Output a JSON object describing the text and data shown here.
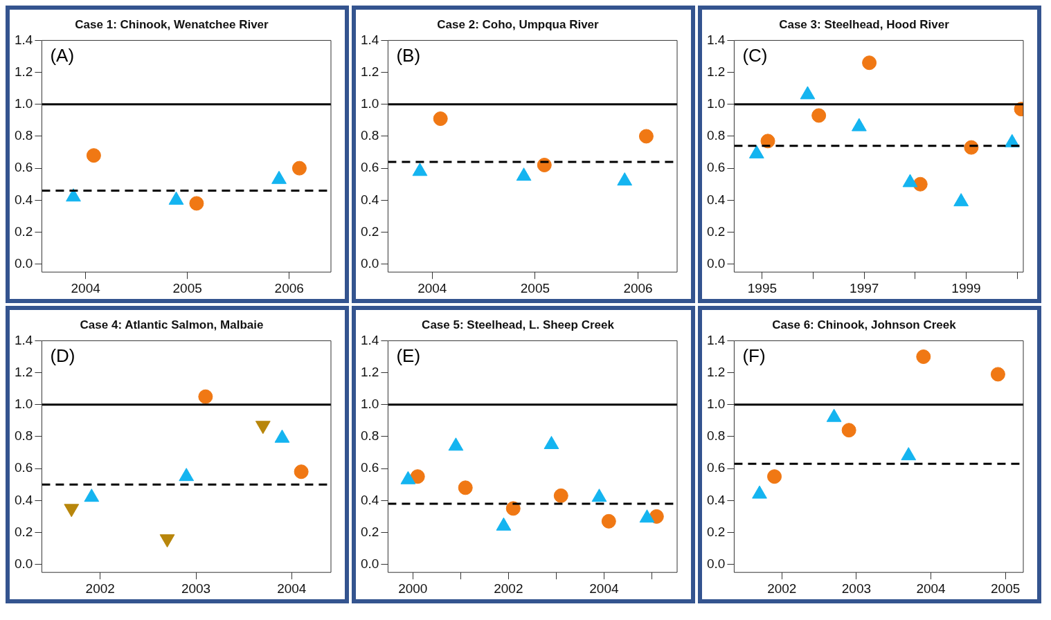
{
  "chart_data": [
    {
      "type": "scatter",
      "title": "Case 1: Chinook, Wenatchee River",
      "annotations": [
        "(A)"
      ],
      "xlim": [
        2003.57,
        2006.41
      ],
      "xticks": [
        2004,
        2005,
        2006
      ],
      "ylim": [
        -0.05,
        1.4
      ],
      "yticks": [
        {
          "value": 0,
          "label": "0.0"
        },
        {
          "value": 0.2,
          "label": "0.2"
        },
        {
          "value": 0.4,
          "label": "0.4"
        },
        {
          "value": 0.6,
          "label": "0.6"
        },
        {
          "value": 0.8,
          "label": "0.8"
        },
        {
          "value": 1,
          "label": "1.0"
        },
        {
          "value": 1.2,
          "label": "1.2"
        },
        {
          "value": 1.4,
          "label": "1.4"
        }
      ],
      "grid": false,
      "series": [
        {
          "color": "#14b4f0",
          "marker": "triangle",
          "x": [
            2003.88,
            2004.89,
            2005.9
          ],
          "values": [
            0.42,
            0.4,
            0.53
          ]
        },
        {
          "color": "#f07814",
          "marker": "circle",
          "x": [
            2004.08,
            2005.09,
            2006.1
          ],
          "values": [
            0.68,
            0.38,
            0.6
          ]
        }
      ],
      "ref_lines": [
        {
          "axis": "y",
          "value": 1,
          "color": "#000000",
          "line_style": "solid"
        },
        {
          "axis": "y",
          "value": 0.46,
          "color": "#000000",
          "line_style": "dashed"
        }
      ]
    },
    {
      "type": "scatter",
      "title": "Case 2: Coho, Umpqua River",
      "annotations": [
        "(B)"
      ],
      "xlim": [
        2003.57,
        2006.38
      ],
      "xticks": [
        2004,
        2005,
        2006
      ],
      "ylim": [
        -0.05,
        1.4
      ],
      "yticks": [
        {
          "value": 0,
          "label": "0.0"
        },
        {
          "value": 0.2,
          "label": "0.2"
        },
        {
          "value": 0.4,
          "label": "0.4"
        },
        {
          "value": 0.6,
          "label": "0.6"
        },
        {
          "value": 0.8,
          "label": "0.8"
        },
        {
          "value": 1,
          "label": "1.0"
        },
        {
          "value": 1.2,
          "label": "1.2"
        },
        {
          "value": 1.4,
          "label": "1.4"
        }
      ],
      "grid": false,
      "series": [
        {
          "color": "#14b4f0",
          "marker": "triangle",
          "x": [
            2003.88,
            2004.89,
            2005.87
          ],
          "values": [
            0.58,
            0.55,
            0.52
          ]
        },
        {
          "color": "#f07814",
          "marker": "circle",
          "x": [
            2004.08,
            2005.09,
            2006.08
          ],
          "values": [
            0.91,
            0.62,
            0.8
          ]
        }
      ],
      "ref_lines": [
        {
          "axis": "y",
          "value": 1,
          "color": "#000000",
          "line_style": "solid"
        },
        {
          "axis": "y",
          "value": 0.64,
          "color": "#000000",
          "line_style": "dashed"
        }
      ]
    },
    {
      "type": "scatter",
      "title": "Case 3: Steelhead, Hood River",
      "annotations": [
        "(C)"
      ],
      "xlim": [
        1994.45,
        2000.12
      ],
      "xticks": [
        1995,
        {
          "value": 1996,
          "label": null
        },
        1997,
        {
          "value": 1998,
          "label": null
        },
        1999,
        {
          "value": 2000,
          "label": null
        }
      ],
      "ylim": [
        -0.05,
        1.4
      ],
      "yticks": [
        {
          "value": 0,
          "label": "0.0"
        },
        {
          "value": 0.2,
          "label": "0.2"
        },
        {
          "value": 0.4,
          "label": "0.4"
        },
        {
          "value": 0.6,
          "label": "0.6"
        },
        {
          "value": 0.8,
          "label": "0.8"
        },
        {
          "value": 1,
          "label": "1.0"
        },
        {
          "value": 1.2,
          "label": "1.2"
        },
        {
          "value": 1.4,
          "label": "1.4"
        }
      ],
      "grid": false,
      "series": [
        {
          "color": "#14b4f0",
          "marker": "triangle",
          "x": [
            1994.89,
            1995.89,
            1996.9,
            1997.9,
            1998.9,
            1999.9
          ],
          "values": [
            0.69,
            1.06,
            0.86,
            0.51,
            0.39,
            0.76
          ]
        },
        {
          "color": "#f07814",
          "marker": "circle",
          "x": [
            1995.11,
            1996.11,
            1997.1,
            1998.1,
            1999.1,
            2000.08
          ],
          "values": [
            0.77,
            0.93,
            1.26,
            0.5,
            0.73,
            0.97
          ]
        }
      ],
      "ref_lines": [
        {
          "axis": "y",
          "value": 1,
          "color": "#000000",
          "line_style": "solid"
        },
        {
          "axis": "y",
          "value": 0.74,
          "color": "#000000",
          "line_style": "dashed"
        }
      ]
    },
    {
      "type": "scatter",
      "title": "Case 4: Atlantic Salmon, Malbaie",
      "annotations": [
        "(D)"
      ],
      "xlim": [
        2001.39,
        2004.41
      ],
      "xticks": [
        2002,
        2003,
        2004
      ],
      "ylim": [
        -0.05,
        1.4
      ],
      "yticks": [
        {
          "value": 0,
          "label": "0.0"
        },
        {
          "value": 0.2,
          "label": "0.2"
        },
        {
          "value": 0.4,
          "label": "0.4"
        },
        {
          "value": 0.6,
          "label": "0.6"
        },
        {
          "value": 0.8,
          "label": "0.8"
        },
        {
          "value": 1,
          "label": "1.0"
        },
        {
          "value": 1.2,
          "label": "1.2"
        },
        {
          "value": 1.4,
          "label": "1.4"
        }
      ],
      "grid": false,
      "series": [
        {
          "color": "#14b4f0",
          "marker": "triangle",
          "x": [
            2001.91,
            2002.9,
            2003.9
          ],
          "values": [
            0.42,
            0.55,
            0.79
          ]
        },
        {
          "color": "#f07814",
          "marker": "circle",
          "x": [
            2003.1,
            2004.1
          ],
          "values": [
            1.05,
            0.58
          ]
        },
        {
          "color": "#b8860b",
          "marker": "triangle-down",
          "x": [
            2001.7,
            2002.7,
            2003.7
          ],
          "values": [
            0.35,
            0.16,
            0.87
          ]
        }
      ],
      "ref_lines": [
        {
          "axis": "y",
          "value": 1,
          "color": "#000000",
          "line_style": "solid"
        },
        {
          "axis": "y",
          "value": 0.5,
          "color": "#000000",
          "line_style": "dashed"
        }
      ]
    },
    {
      "type": "scatter",
      "title": "Case 5: Steelhead, L. Sheep Creek",
      "annotations": [
        "(E)"
      ],
      "xlim": [
        1999.48,
        2005.53
      ],
      "xticks": [
        2000,
        {
          "value": 2001,
          "label": null
        },
        2002,
        {
          "value": 2003,
          "label": null
        },
        2004,
        {
          "value": 2005,
          "label": null
        }
      ],
      "ylim": [
        -0.05,
        1.4
      ],
      "yticks": [
        {
          "value": 0,
          "label": "0.0"
        },
        {
          "value": 0.2,
          "label": "0.2"
        },
        {
          "value": 0.4,
          "label": "0.4"
        },
        {
          "value": 0.6,
          "label": "0.6"
        },
        {
          "value": 0.8,
          "label": "0.8"
        },
        {
          "value": 1,
          "label": "1.0"
        },
        {
          "value": 1.2,
          "label": "1.2"
        },
        {
          "value": 1.4,
          "label": "1.4"
        }
      ],
      "grid": false,
      "series": [
        {
          "color": "#14b4f0",
          "marker": "triangle",
          "x": [
            1999.9,
            2000.9,
            2001.9,
            2002.9,
            2003.9,
            2004.9
          ],
          "values": [
            0.53,
            0.74,
            0.24,
            0.75,
            0.42,
            0.29
          ]
        },
        {
          "color": "#f07814",
          "marker": "circle",
          "x": [
            2000.1,
            2001.1,
            2002.1,
            2003.1,
            2004.1,
            2005.1
          ],
          "values": [
            0.55,
            0.48,
            0.35,
            0.43,
            0.27,
            0.3
          ]
        }
      ],
      "ref_lines": [
        {
          "axis": "y",
          "value": 1,
          "color": "#000000",
          "line_style": "solid"
        },
        {
          "axis": "y",
          "value": 0.38,
          "color": "#000000",
          "line_style": "dashed"
        }
      ]
    },
    {
      "type": "scatter",
      "title": "Case 6: Chinook, Johnson Creek",
      "annotations": [
        "(F)"
      ],
      "xlim": [
        2001.36,
        2005.24
      ],
      "xticks": [
        2002,
        2003,
        2004,
        2005
      ],
      "ylim": [
        -0.05,
        1.4
      ],
      "yticks": [
        {
          "value": 0,
          "label": "0.0"
        },
        {
          "value": 0.2,
          "label": "0.2"
        },
        {
          "value": 0.4,
          "label": "0.4"
        },
        {
          "value": 0.6,
          "label": "0.6"
        },
        {
          "value": 0.8,
          "label": "0.8"
        },
        {
          "value": 1,
          "label": "1.0"
        },
        {
          "value": 1.2,
          "label": "1.2"
        },
        {
          "value": 1.4,
          "label": "1.4"
        }
      ],
      "grid": false,
      "series": [
        {
          "color": "#14b4f0",
          "marker": "triangle",
          "x": [
            2001.7,
            2002.7,
            2003.7
          ],
          "values": [
            0.44,
            0.92,
            0.68
          ]
        },
        {
          "color": "#f07814",
          "marker": "circle",
          "x": [
            2001.9,
            2002.9,
            2003.9,
            2004.9
          ],
          "values": [
            0.55,
            0.84,
            1.3,
            1.19
          ]
        }
      ],
      "ref_lines": [
        {
          "axis": "y",
          "value": 1,
          "color": "#000000",
          "line_style": "solid"
        },
        {
          "axis": "y",
          "value": 0.63,
          "color": "#000000",
          "line_style": "dashed"
        }
      ]
    }
  ]
}
